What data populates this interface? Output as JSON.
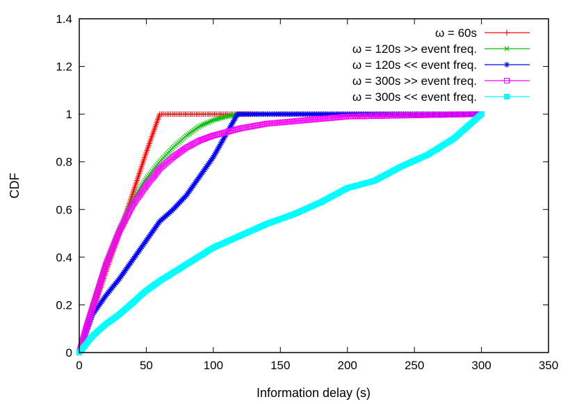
{
  "chart_data": {
    "type": "line",
    "xlabel": "Information delay (s)",
    "ylabel": "CDF",
    "xlim": [
      0,
      350
    ],
    "ylim": [
      0,
      1.4
    ],
    "xticks": [
      "0",
      "50",
      "100",
      "150",
      "200",
      "250",
      "300",
      "350"
    ],
    "yticks": [
      "0",
      "0.2",
      "0.4",
      "0.6",
      "0.8",
      "1",
      "1.2",
      "1.4"
    ],
    "grid": false,
    "legend_position": "top-right",
    "series": [
      {
        "name": "ω = 60s",
        "color": "#ff0000",
        "marker": "plus",
        "x": [
          0,
          10,
          20,
          30,
          40,
          50,
          60,
          120,
          300
        ],
        "y": [
          0,
          0.17,
          0.34,
          0.5,
          0.67,
          0.84,
          1.0,
          1.0,
          1.0
        ]
      },
      {
        "name": "ω = 120s >> event freq.",
        "color": "#00c000",
        "marker": "x",
        "x": [
          0,
          5,
          10,
          20,
          30,
          40,
          50,
          60,
          70,
          80,
          90,
          100,
          110,
          120
        ],
        "y": [
          0,
          0.11,
          0.2,
          0.38,
          0.52,
          0.64,
          0.73,
          0.8,
          0.86,
          0.91,
          0.95,
          0.975,
          0.99,
          1.0
        ]
      },
      {
        "name": "ω = 120s << event freq.",
        "color": "#0000ff",
        "marker": "star",
        "x": [
          0,
          10,
          20,
          30,
          40,
          50,
          60,
          70,
          80,
          90,
          100,
          110,
          118,
          150,
          300
        ],
        "y": [
          0,
          0.16,
          0.24,
          0.31,
          0.39,
          0.47,
          0.55,
          0.6,
          0.66,
          0.74,
          0.82,
          0.92,
          1.0,
          1.0,
          1.0
        ]
      },
      {
        "name": "ω = 300s >> event freq.",
        "color": "#ff00ff",
        "marker": "square",
        "x": [
          0,
          5,
          10,
          20,
          30,
          40,
          50,
          60,
          70,
          80,
          90,
          100,
          120,
          140,
          160,
          180,
          200,
          250,
          300
        ],
        "y": [
          0,
          0.1,
          0.19,
          0.37,
          0.51,
          0.62,
          0.7,
          0.77,
          0.82,
          0.86,
          0.89,
          0.91,
          0.94,
          0.96,
          0.97,
          0.98,
          0.99,
          0.995,
          1.0
        ]
      },
      {
        "name": "ω = 300s << event freq.",
        "color": "#00ffff",
        "marker": "filled-square",
        "x": [
          0,
          10,
          20,
          30,
          40,
          50,
          60,
          80,
          100,
          120,
          140,
          160,
          180,
          200,
          220,
          240,
          260,
          280,
          300
        ],
        "y": [
          0,
          0.07,
          0.12,
          0.16,
          0.21,
          0.26,
          0.3,
          0.37,
          0.44,
          0.49,
          0.54,
          0.58,
          0.63,
          0.69,
          0.72,
          0.78,
          0.83,
          0.9,
          1.0
        ]
      }
    ]
  }
}
